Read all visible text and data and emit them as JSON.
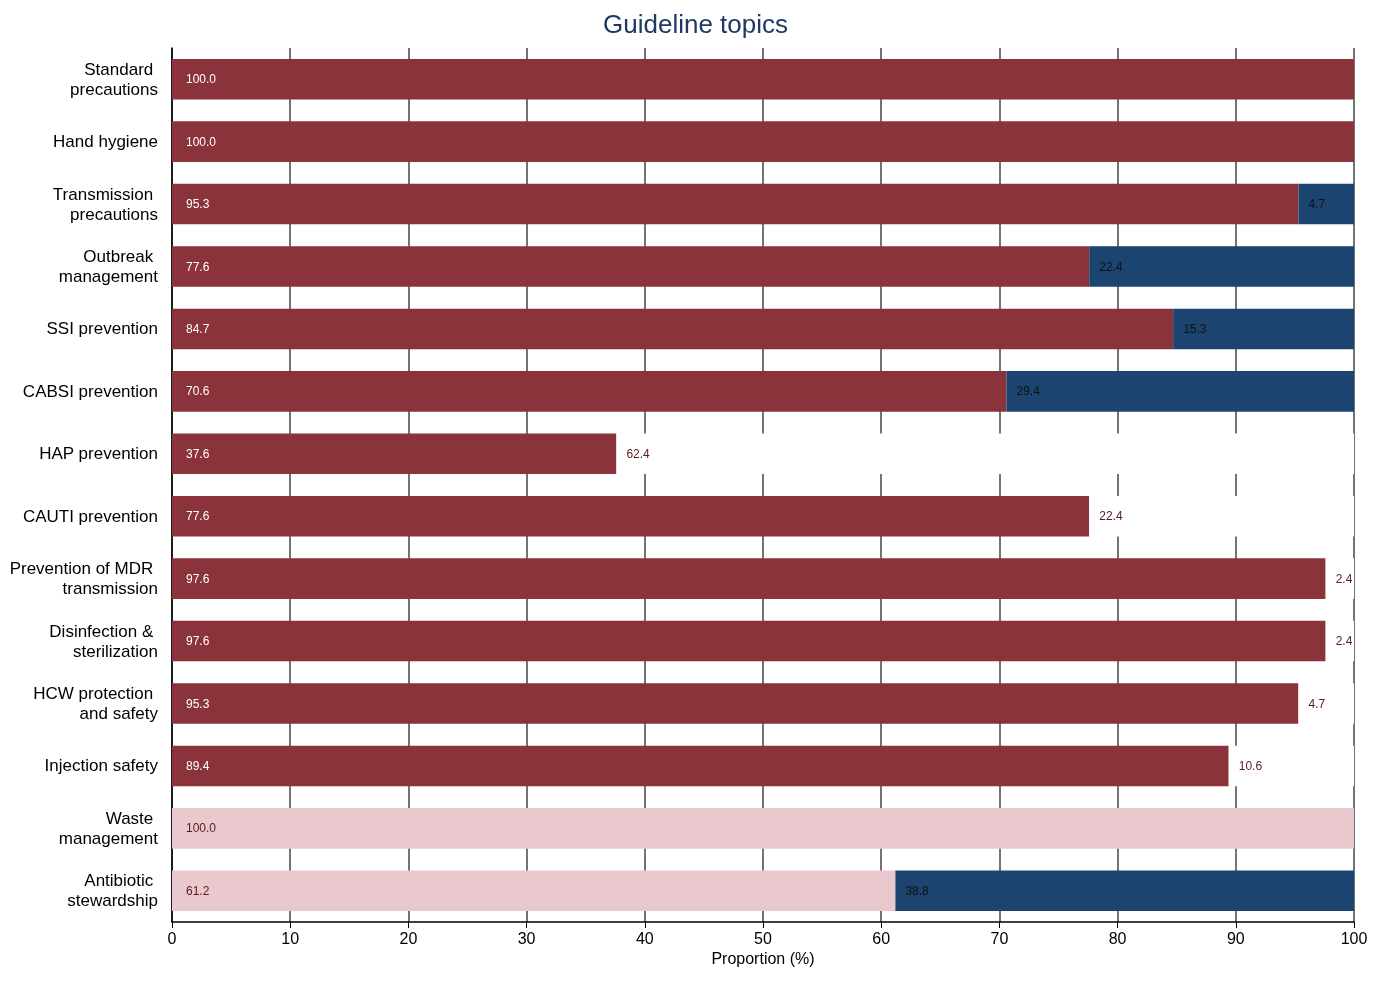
{
  "chart_data": {
    "type": "bar",
    "orientation": "horizontal",
    "stacked": true,
    "title": "Guideline topics",
    "xlabel": "Proportion (%)",
    "categories": [
      "Standard precautions",
      "Hand hygiene",
      "Transmission precautions",
      "Outbreak management",
      "SSI prevention",
      "CABSI prevention",
      "HAP prevention",
      "CAUTI prevention",
      "Prevention of MDR transmission",
      "Disinfection & sterilization",
      "HCW protection and safety",
      "Injection safety",
      "Waste management",
      "Antibiotic stewardship"
    ],
    "series": [
      {
        "values": [
          100.0,
          100.0,
          95.3,
          77.6,
          84.7,
          70.6,
          37.6,
          77.6,
          97.6,
          97.6,
          95.3,
          89.4,
          100.0,
          61.2
        ],
        "value_labels": [
          "100.0",
          "100.0",
          "95.3",
          "77.6",
          "84.7",
          "70.6",
          "37.6",
          "77.6",
          "97.6",
          "97.6",
          "95.3",
          "89.4",
          "100.0",
          "61.2"
        ],
        "colors": [
          "#8b333b",
          "#8b333b",
          "#8b333b",
          "#8b333b",
          "#8b333b",
          "#8b333b",
          "#8b333b",
          "#8b333b",
          "#8b333b",
          "#8b333b",
          "#8b333b",
          "#8b333b",
          "#e9c9cd",
          "#e9c9cd"
        ]
      },
      {
        "values": [
          null,
          null,
          4.7,
          22.4,
          15.3,
          29.4,
          62.4,
          22.4,
          2.4,
          2.4,
          4.7,
          10.6,
          null,
          38.8
        ],
        "value_labels": [
          null,
          null,
          "4.7",
          "22.4",
          "15.3",
          "29.4",
          "62.4",
          "22.4",
          "2.4",
          "2.4",
          "4.7",
          "10.6",
          null,
          "38.8"
        ],
        "colors": [
          "#1b4570",
          "#1b4570",
          "#1b4570",
          "#1b4570",
          "#1b4570",
          "#1b4570",
          "#ffffff",
          "#ffffff",
          "#ffffff",
          "#ffffff",
          "#ffffff",
          "#ffffff",
          "#1b4570",
          "#1b4570"
        ]
      }
    ],
    "xlim": [
      0,
      100
    ],
    "xticks": [
      0,
      10,
      20,
      30,
      40,
      50,
      60,
      70,
      80,
      90,
      100
    ],
    "grid": "x"
  }
}
